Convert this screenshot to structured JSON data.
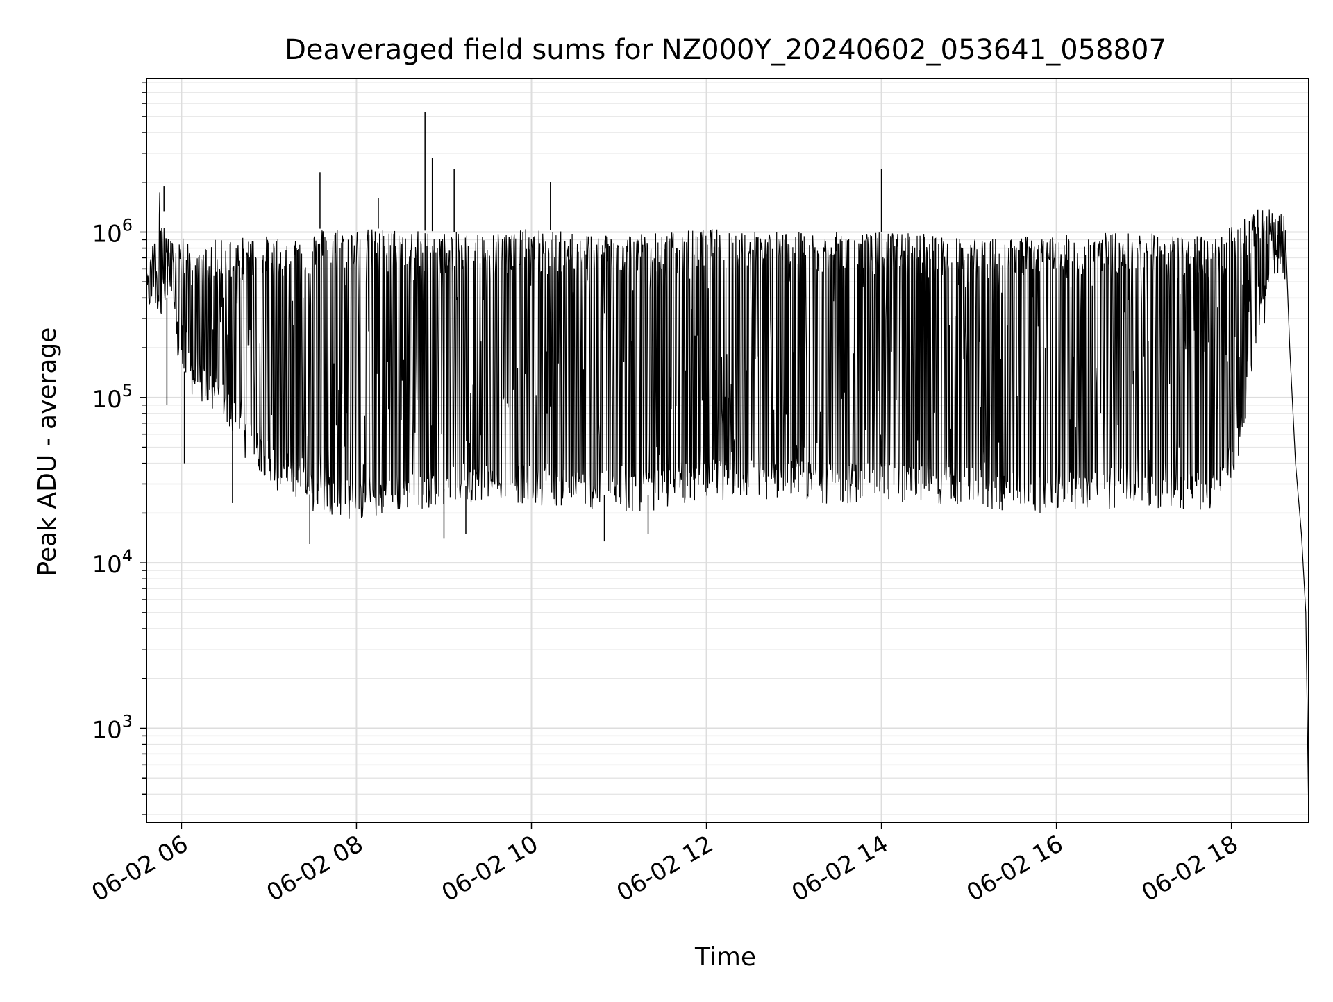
{
  "chart_data": {
    "type": "line",
    "title": "Deaveraged field sums for NZ000Y_20240602_053641_058807",
    "xlabel": "Time",
    "ylabel": "Peak ADU - average",
    "yscale": "log",
    "ylim": [
      270,
      8500000
    ],
    "xlim": [
      "2024-06-02T05:36",
      "2024-06-02T18:53"
    ],
    "grid": "both major and minor",
    "x_ticks": [
      {
        "value": "2024-06-02T06:00",
        "label": "06-02 06"
      },
      {
        "value": "2024-06-02T08:00",
        "label": "06-02 08"
      },
      {
        "value": "2024-06-02T10:00",
        "label": "06-02 10"
      },
      {
        "value": "2024-06-02T12:00",
        "label": "06-02 12"
      },
      {
        "value": "2024-06-02T14:00",
        "label": "06-02 14"
      },
      {
        "value": "2024-06-02T16:00",
        "label": "06-02 16"
      },
      {
        "value": "2024-06-02T18:00",
        "label": "06-02 18"
      }
    ],
    "y_ticks": [
      {
        "value": 1000,
        "base": "10",
        "exp": "3"
      },
      {
        "value": 10000,
        "base": "10",
        "exp": "4"
      },
      {
        "value": 100000,
        "base": "10",
        "exp": "5"
      },
      {
        "value": 1000000,
        "base": "10",
        "exp": "6"
      }
    ],
    "series": [
      {
        "color": "#000000",
        "envelope": {
          "x": [
            "2024-06-02T05:36",
            "2024-06-02T05:45",
            "2024-06-02T05:52",
            "2024-06-02T06:00",
            "2024-06-02T06:10",
            "2024-06-02T06:20",
            "2024-06-02T06:30",
            "2024-06-02T06:45",
            "2024-06-02T07:00",
            "2024-06-02T07:10",
            "2024-06-02T07:20",
            "2024-06-02T07:30",
            "2024-06-02T07:40",
            "2024-06-02T08:00",
            "2024-06-02T08:30",
            "2024-06-02T09:00",
            "2024-06-02T09:30",
            "2024-06-02T10:00",
            "2024-06-02T10:30",
            "2024-06-02T11:00",
            "2024-06-02T11:30",
            "2024-06-02T12:00",
            "2024-06-02T12:30",
            "2024-06-02T13:00",
            "2024-06-02T13:30",
            "2024-06-02T14:00",
            "2024-06-02T14:30",
            "2024-06-02T15:00",
            "2024-06-02T15:30",
            "2024-06-02T16:00",
            "2024-06-02T16:30",
            "2024-06-02T17:00",
            "2024-06-02T17:30",
            "2024-06-02T17:50",
            "2024-06-02T18:05",
            "2024-06-02T18:20",
            "2024-06-02T18:30",
            "2024-06-02T18:37"
          ],
          "upper": [
            500000,
            1800000,
            900000,
            1000000,
            700000,
            900000,
            900000,
            950000,
            950000,
            900000,
            1000000,
            1000000,
            1100000,
            1050000,
            1050000,
            1000000,
            1000000,
            1050000,
            1000000,
            1000000,
            1000000,
            1050000,
            1050000,
            1000000,
            1000000,
            1000000,
            1000000,
            900000,
            950000,
            950000,
            1000000,
            1000000,
            950000,
            950000,
            1200000,
            1500000,
            1300000,
            1300000
          ],
          "lower": [
            400000,
            400000,
            400000,
            150000,
            120000,
            100000,
            90000,
            50000,
            40000,
            30000,
            30000,
            25000,
            25000,
            22000,
            25000,
            28000,
            30000,
            28000,
            27000,
            25000,
            26000,
            30000,
            30000,
            30000,
            28000,
            30000,
            28000,
            27000,
            25000,
            25000,
            26000,
            27000,
            26000,
            25000,
            50000,
            300000,
            500000,
            600000
          ]
        },
        "spikes": [
          {
            "x": "2024-06-02T08:47",
            "y": 5300000
          },
          {
            "x": "2024-06-02T08:52",
            "y": 2800000
          },
          {
            "x": "2024-06-02T09:07",
            "y": 2400000
          },
          {
            "x": "2024-06-02T10:13",
            "y": 2000000
          },
          {
            "x": "2024-06-02T14:00",
            "y": 2400000
          },
          {
            "x": "2024-06-02T07:35",
            "y": 2300000
          },
          {
            "x": "2024-06-02T08:15",
            "y": 1600000
          },
          {
            "x": "2024-06-02T05:48",
            "y": 1900000
          },
          {
            "x": "2024-06-02T07:28",
            "y": 13000
          },
          {
            "x": "2024-06-02T10:50",
            "y": 13500
          },
          {
            "x": "2024-06-02T09:00",
            "y": 14000
          },
          {
            "x": "2024-06-02T09:15",
            "y": 15000
          },
          {
            "x": "2024-06-02T11:20",
            "y": 15000
          },
          {
            "x": "2024-06-02T05:50",
            "y": 90000
          },
          {
            "x": "2024-06-02T06:02",
            "y": 40000
          },
          {
            "x": "2024-06-02T06:35",
            "y": 23000
          }
        ],
        "tail": {
          "x": [
            "2024-06-02T18:37",
            "2024-06-02T18:40",
            "2024-06-02T18:44",
            "2024-06-02T18:48",
            "2024-06-02T18:51",
            "2024-06-02T18:53"
          ],
          "y": [
            1000000,
            200000,
            40000,
            15000,
            5000,
            300
          ]
        }
      }
    ]
  }
}
